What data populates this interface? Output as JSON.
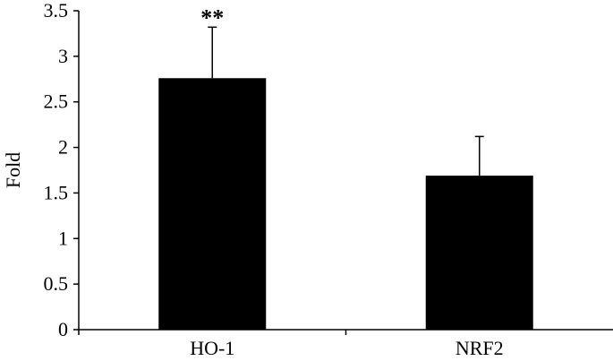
{
  "chart_data": {
    "type": "bar",
    "title": "",
    "xlabel": "",
    "ylabel": "Fold",
    "ylim": [
      0,
      3.5
    ],
    "yticks": [
      0,
      0.5,
      1,
      1.5,
      2,
      2.5,
      3,
      3.5
    ],
    "ytick_labels": [
      "0",
      "0.5",
      "1",
      "1.5",
      "2",
      "2.5",
      "3",
      "3.5"
    ],
    "categories": [
      "HO-1",
      "NRF2"
    ],
    "values": [
      2.76,
      1.69
    ],
    "error_upper": [
      0.56,
      0.43
    ],
    "annotations": [
      "**",
      ""
    ],
    "grid": false,
    "bar_color": "#000000"
  }
}
